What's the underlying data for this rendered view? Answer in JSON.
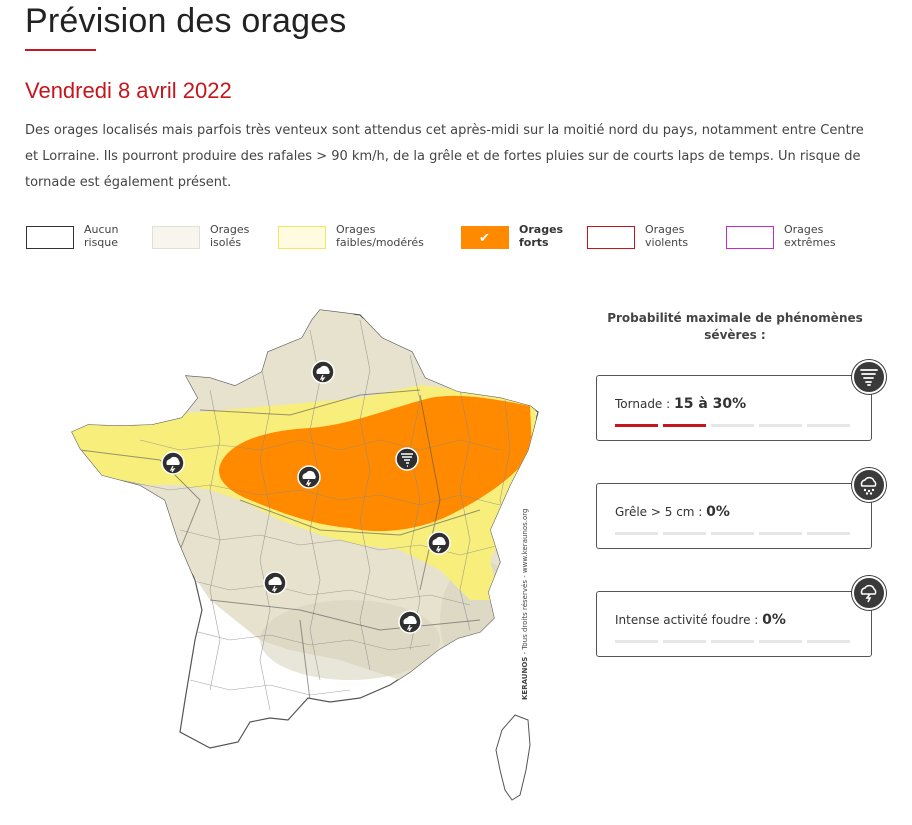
{
  "page": {
    "title": "Prévision des orages",
    "date": "Vendredi 8 avril 2022",
    "description": "Des orages localisés mais parfois très venteux sont attendus cet après-midi sur la moitié nord du pays, notamment entre Centre et Lorraine. Ils pourront produire des rafales > 90 km/h, de la grêle et de fortes pluies sur de courts laps de temps. Un risque de tornade est également présent."
  },
  "legend": [
    {
      "line1": "Aucun",
      "line2": "risque",
      "fill": "#ffffff",
      "border": "#333333",
      "selected": false
    },
    {
      "line1": "Orages",
      "line2": "isolés",
      "fill": "#f5f3ea",
      "border": "#dedccd",
      "selected": false
    },
    {
      "line1": "Orages",
      "line2": "faibles/modérés",
      "fill": "#fffbe0",
      "border": "#f2e563",
      "selected": false
    },
    {
      "line1": "Orages",
      "line2": "forts",
      "fill": "#ff8a00",
      "border": "#ff8a00",
      "selected": true
    },
    {
      "line1": "Orages",
      "line2": "violents",
      "fill": "#ffffff",
      "border": "#c4161c",
      "selected": false
    },
    {
      "line1": "Orages",
      "line2": "extrêmes",
      "fill": "#ffffff",
      "border": "#c42bcf",
      "selected": false
    }
  ],
  "map": {
    "credit_brand": "KERAUNOS",
    "credit_text": " - Tous droits réservés - www.keraunos.org",
    "colors": {
      "none": "#ffffff",
      "isolated": "#e7e2cd",
      "moderate": "#f8ee7c",
      "strong": "#ff8a00",
      "border": "#777777"
    },
    "icons": [
      "storm-cloud-icon",
      "storm-cloud-icon",
      "storm-cloud-icon",
      "tornado-icon",
      "storm-cloud-icon",
      "storm-cloud-icon",
      "storm-cloud-icon"
    ]
  },
  "panel": {
    "title": "Probabilité maximale de phénomènes sévères :",
    "cards": [
      {
        "label": "Tornade : ",
        "value": "15 à 30%",
        "icon": "tornado-icon",
        "filled_bars": 2,
        "total_bars": 5
      },
      {
        "label": "Grêle > 5 cm : ",
        "value": "0%",
        "icon": "hail-icon",
        "filled_bars": 0,
        "total_bars": 5
      },
      {
        "label": "Intense activité foudre : ",
        "value": "0%",
        "icon": "lightning-icon",
        "filled_bars": 0,
        "total_bars": 5
      }
    ]
  },
  "accent_color": "#c4161c"
}
